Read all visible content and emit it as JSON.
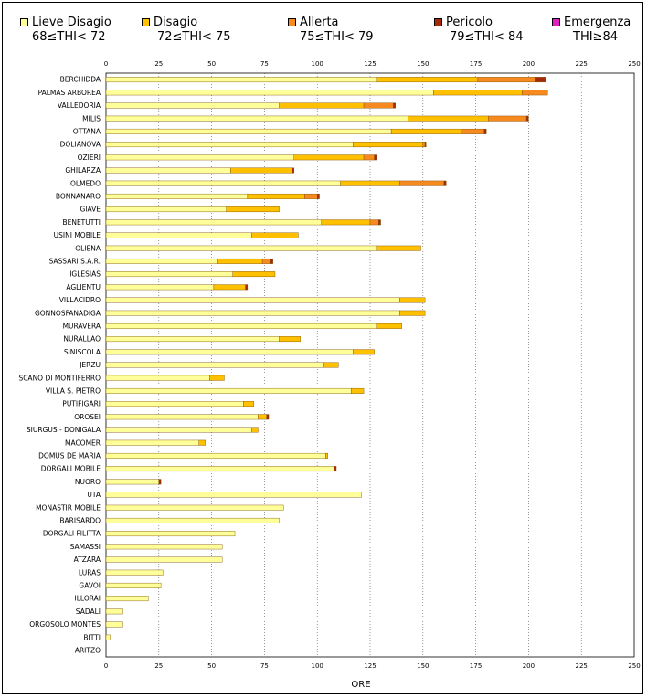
{
  "legend": [
    {
      "name": "Lieve Disagio",
      "range": "68≤THI< 72",
      "color": "#FFFF99"
    },
    {
      "name": "Disagio",
      "range": "72≤THI< 75",
      "color": "#FFC000"
    },
    {
      "name": "Allerta",
      "range": "75≤THI< 79",
      "color": "#F68A1F"
    },
    {
      "name": "Pericolo",
      "range": "79≤THI< 84",
      "color": "#A52A0A"
    },
    {
      "name": "Emergenza",
      "range": "THI≥84",
      "color": "#E020C0"
    }
  ],
  "chart_data": {
    "type": "bar",
    "orientation": "horizontal",
    "stacked": true,
    "xlabel": "ORE",
    "xlim": [
      0,
      250
    ],
    "xticks": [
      0,
      25,
      50,
      75,
      100,
      125,
      150,
      175,
      200,
      225,
      250
    ],
    "grid": "vertical dotted",
    "categories": [
      "BERCHIDDA",
      "PALMAS ARBOREA",
      "VALLEDORIA",
      "MILIS",
      "OTTANA",
      "DOLIANOVA",
      "OZIERI",
      "GHILARZA",
      "OLMEDO",
      "BONNANARO",
      "GIAVE",
      "BENETUTTI",
      "USINI MOBILE",
      "OLIENA",
      "SASSARI S.A.R.",
      "IGLESIAS",
      "AGLIENTU",
      "VILLACIDRO",
      "GONNOSFANADIGA",
      "MURAVERA",
      "NURALLAO",
      "SINISCOLA",
      "JERZU",
      "SCANO DI MONTIFERRO",
      "VILLA S. PIETRO",
      "PUTIFIGARI",
      "OROSEI",
      "SIURGUS - DONIGALA",
      "MACOMER",
      "DOMUS DE MARIA",
      "DORGALI MOBILE",
      "NUORO",
      "UTA",
      "MONASTIR MOBILE",
      "BARISARDO",
      "DORGALI FILITTA",
      "SAMASSI",
      "ATZARA",
      "LURAS",
      "GAVOI",
      "ILLORAI",
      "SADALI",
      "ORGOSOLO MONTES",
      "BITTI",
      "ARITZO"
    ],
    "series": [
      {
        "name": "Lieve Disagio",
        "values": [
          128,
          155,
          82,
          143,
          135,
          117,
          89,
          59,
          111,
          67,
          57,
          102,
          69,
          128,
          53,
          60,
          51,
          139,
          139,
          128,
          82,
          117,
          103,
          49,
          116,
          65,
          72,
          69,
          44,
          104,
          108,
          25,
          121,
          84,
          82,
          61,
          55,
          55,
          27,
          26,
          20,
          8,
          8,
          2,
          0
        ]
      },
      {
        "name": "Disagio",
        "values": [
          48,
          42,
          40,
          38,
          33,
          33,
          33,
          29,
          28,
          27,
          25,
          23,
          22,
          21,
          21,
          20,
          15,
          12,
          12,
          12,
          10,
          10,
          7,
          7,
          6,
          5,
          4,
          3,
          3,
          1,
          0,
          0,
          0,
          0,
          0,
          0,
          0,
          0,
          0,
          0,
          0,
          0,
          0,
          0,
          0
        ]
      },
      {
        "name": "Allerta",
        "values": [
          27,
          12,
          14,
          18,
          11,
          1,
          5,
          0,
          21,
          6,
          0,
          4,
          0,
          0,
          4,
          0,
          0,
          0,
          0,
          0,
          0,
          0,
          0,
          0,
          0,
          0,
          0,
          0,
          0,
          0,
          0,
          0,
          0,
          0,
          0,
          0,
          0,
          0,
          0,
          0,
          0,
          0,
          0,
          0,
          0
        ]
      },
      {
        "name": "Pericolo",
        "values": [
          5,
          0,
          1,
          1,
          1,
          0.5,
          1,
          1,
          1,
          1,
          0,
          1,
          0,
          0,
          1,
          0,
          1,
          0,
          0,
          0,
          0,
          0,
          0,
          0,
          0,
          0,
          1,
          0,
          0,
          0,
          1,
          1,
          0,
          0,
          0,
          0,
          0,
          0,
          0,
          0,
          0,
          0,
          0,
          0,
          0
        ]
      },
      {
        "name": "Emergenza",
        "values": [
          0,
          0,
          0,
          0,
          0,
          0,
          0,
          0,
          0,
          0,
          0,
          0,
          0,
          0,
          0,
          0,
          0,
          0,
          0,
          0,
          0,
          0,
          0,
          0,
          0,
          0,
          0,
          0,
          0,
          0,
          0,
          0,
          0,
          0,
          0,
          0,
          0,
          0,
          0,
          0,
          0,
          0,
          0,
          0,
          0
        ]
      }
    ]
  }
}
